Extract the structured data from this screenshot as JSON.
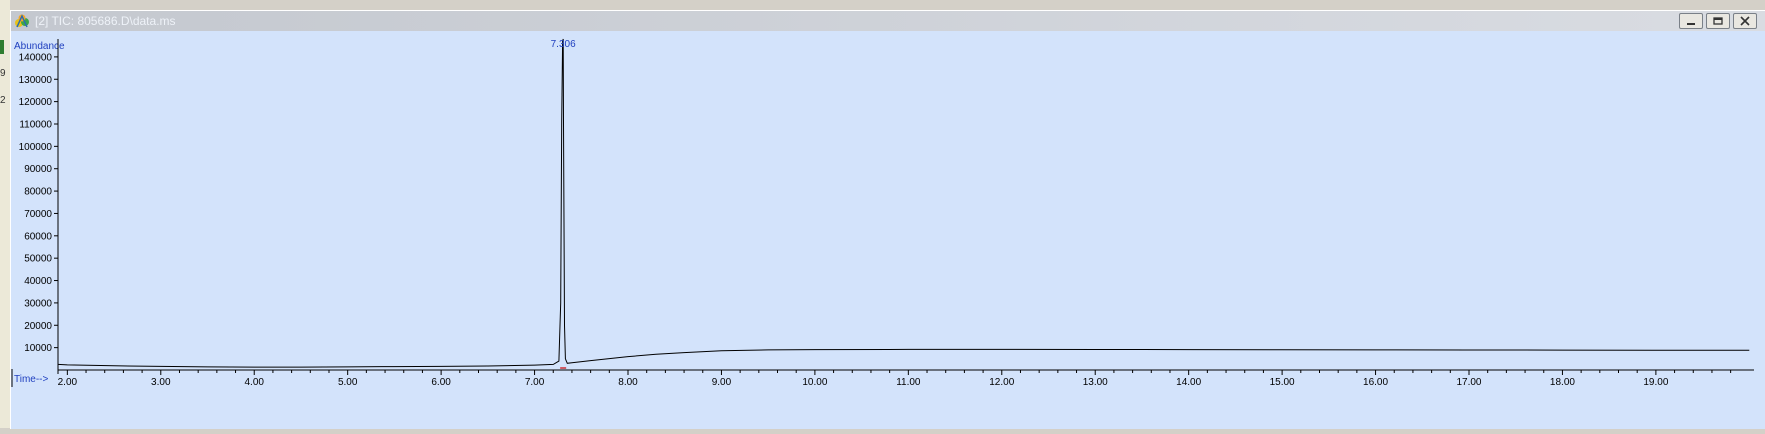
{
  "window": {
    "title": "[2] TIC: 805686.D\\data.ms",
    "icon": "tic-window-icon",
    "buttons": [
      "minimize-icon",
      "restore-icon",
      "close-icon"
    ]
  },
  "left_strip_marks": [
    "9",
    "2"
  ],
  "colors": {
    "plot_background": "#d3e3fb",
    "trace": "#000000",
    "axis_labels": "#1f3fbf",
    "peak_label": "#1f3fbf",
    "integration_mark": "#cc0000"
  },
  "chart_data": {
    "type": "line",
    "title": "",
    "xlabel": "Time-->",
    "ylabel": "Abundance",
    "xlim": [
      1.9,
      20.05
    ],
    "ylim": [
      0,
      148000
    ],
    "x_ticks": [
      "2.00",
      "3.00",
      "4.00",
      "5.00",
      "6.00",
      "7.00",
      "8.00",
      "9.00",
      "10.00",
      "11.00",
      "12.00",
      "13.00",
      "14.00",
      "15.00",
      "16.00",
      "17.00",
      "18.00",
      "19.00"
    ],
    "y_ticks": [
      "10000",
      "20000",
      "30000",
      "40000",
      "50000",
      "60000",
      "70000",
      "80000",
      "90000",
      "100000",
      "110000",
      "120000",
      "130000",
      "140000"
    ],
    "grid": false,
    "series": [
      {
        "x": [
          1.9,
          2.0,
          2.5,
          3.0,
          3.5,
          4.0,
          4.5,
          5.0,
          5.5,
          6.0,
          6.5,
          7.0,
          7.2,
          7.26,
          7.28,
          7.29,
          7.3,
          7.306,
          7.31,
          7.32,
          7.33,
          7.35,
          7.4,
          7.6,
          7.8,
          8.0,
          8.3,
          8.6,
          9.0,
          9.5,
          10.0,
          11.0,
          12.0,
          13.0,
          14.0,
          15.0,
          16.0,
          17.0,
          18.0,
          19.0,
          20.0
        ],
        "y": [
          2500,
          2300,
          1900,
          1600,
          1400,
          1300,
          1300,
          1400,
          1500,
          1600,
          1800,
          2200,
          2500,
          4000,
          30000,
          111000,
          147000,
          148000,
          111000,
          20000,
          5000,
          3000,
          3200,
          4200,
          5100,
          6000,
          7000,
          7800,
          8600,
          9000,
          9100,
          9200,
          9200,
          9150,
          9100,
          9050,
          9000,
          8950,
          8900,
          8850,
          8800
        ]
      }
    ],
    "annotations": [
      {
        "text": "7.306",
        "x": 7.306,
        "y": 148000
      }
    ]
  }
}
